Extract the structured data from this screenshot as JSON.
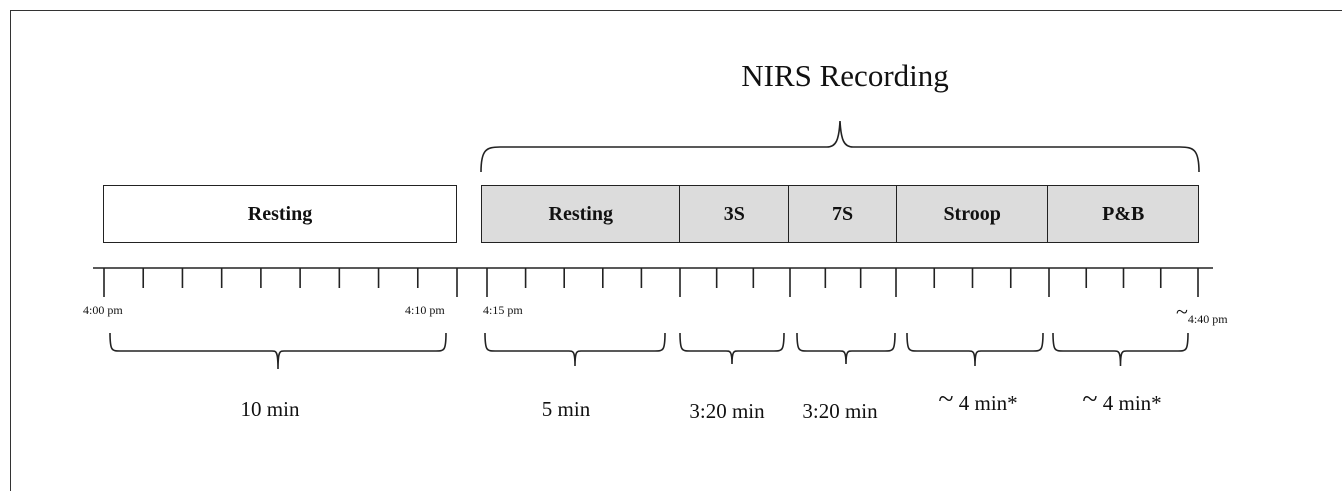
{
  "title": "NIRS Recording",
  "pre_block": {
    "label": "Resting"
  },
  "recording_segments": [
    {
      "label": "Resting"
    },
    {
      "label": "3S"
    },
    {
      "label": "7S"
    },
    {
      "label": "Stroop"
    },
    {
      "label": "P&B"
    }
  ],
  "time_labels": {
    "start": "4:00 pm",
    "rest_end": "4:10 pm",
    "rec_start": "4:15 pm",
    "end_tilde": "~",
    "end": "4:40 pm"
  },
  "durations": [
    {
      "tilde": "",
      "text": "10 min"
    },
    {
      "tilde": "",
      "text": "5 min"
    },
    {
      "tilde": "",
      "text": "3:20 min"
    },
    {
      "tilde": "",
      "text": "3:20 min"
    },
    {
      "tilde": "~",
      "text": " 4 min*"
    },
    {
      "tilde": "~",
      "text": " 4 min*"
    }
  ]
}
